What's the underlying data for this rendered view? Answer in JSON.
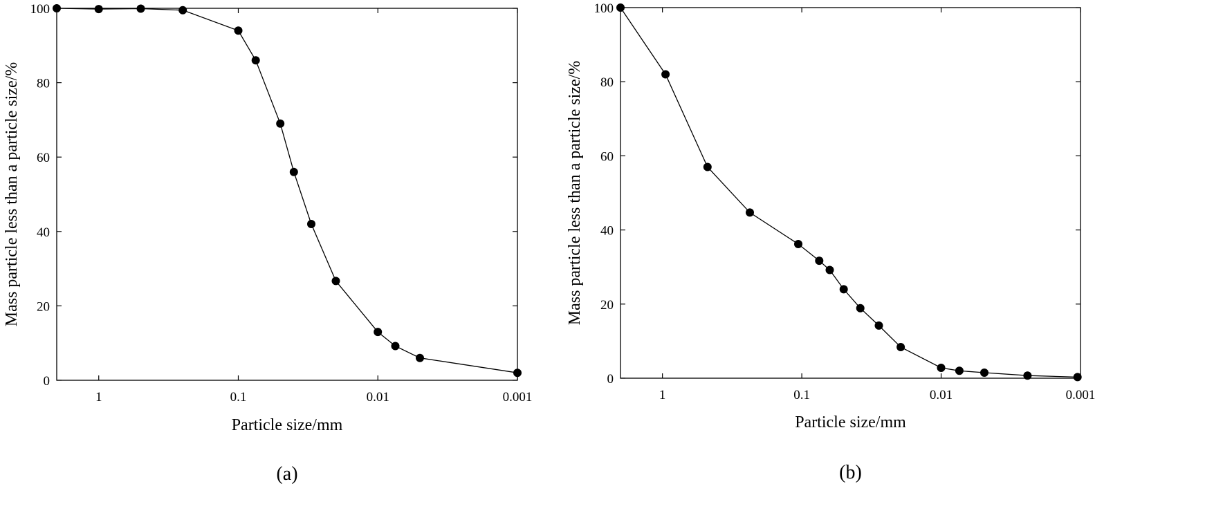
{
  "chart_data": [
    {
      "type": "line",
      "panel_label": "(a)",
      "xlabel": "Particle size/mm",
      "ylabel": "Mass particle less than a particle size/%",
      "xscale": "log",
      "x_reversed": true,
      "xlim": [
        2,
        0.001
      ],
      "ylim": [
        0,
        100
      ],
      "x_ticks": [
        1,
        0.1,
        0.01,
        0.001
      ],
      "x_tick_labels": [
        "1",
        "0.1",
        "0.01",
        "0.001"
      ],
      "y_ticks": [
        0,
        20,
        40,
        60,
        80,
        100
      ],
      "y_tick_labels": [
        "0",
        "20",
        "40",
        "60",
        "80",
        "100"
      ],
      "grid": false,
      "series": [
        {
          "x": [
            2,
            1,
            0.5,
            0.25,
            0.1,
            0.075,
            0.05,
            0.04,
            0.03,
            0.02,
            0.01,
            0.0075,
            0.005,
            0.001
          ],
          "y": [
            100,
            99.8,
            99.9,
            99.5,
            94,
            86,
            69,
            56,
            42,
            26.7,
            13,
            9.2,
            6,
            2
          ]
        }
      ]
    },
    {
      "type": "line",
      "panel_label": "(b)",
      "xlabel": "Particle size/mm",
      "ylabel": "Mass particle less than a particle size/%",
      "xscale": "log",
      "x_reversed": true,
      "xlim": [
        2,
        0.001
      ],
      "ylim": [
        0,
        100
      ],
      "x_ticks": [
        1,
        0.1,
        0.01,
        0.001
      ],
      "x_tick_labels": [
        "1",
        "0.1",
        "0.01",
        "0.001"
      ],
      "y_ticks": [
        0,
        20,
        40,
        60,
        80,
        100
      ],
      "y_tick_labels": [
        "0",
        "20",
        "40",
        "60",
        "80",
        "100"
      ],
      "grid": false,
      "series": [
        {
          "x": [
            2,
            0.95,
            0.475,
            0.236,
            0.106,
            0.075,
            0.063,
            0.05,
            0.038,
            0.028,
            0.0195,
            0.01,
            0.0074,
            0.0049,
            0.0024,
            0.00105
          ],
          "y": [
            100,
            82,
            57,
            44.7,
            36.2,
            31.7,
            29.2,
            24,
            18.9,
            14.2,
            8.4,
            2.8,
            2,
            1.5,
            0.7,
            0.3
          ]
        }
      ]
    }
  ]
}
